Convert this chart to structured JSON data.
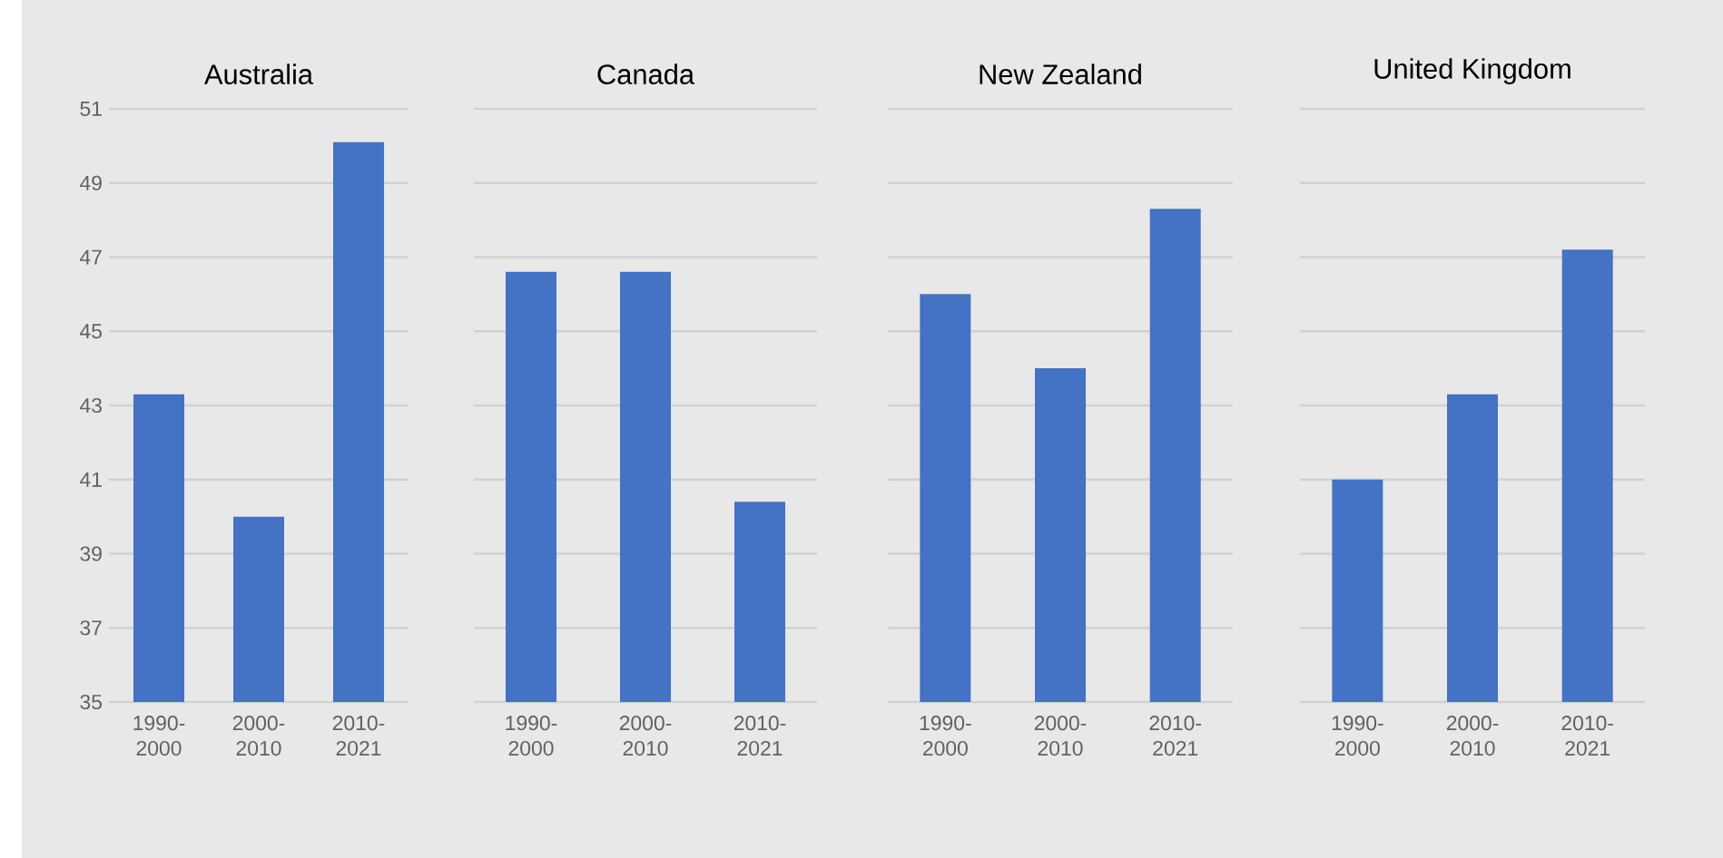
{
  "chart_data": [
    {
      "type": "bar",
      "title": "Australia",
      "categories": [
        "1990-2000",
        "2000-2010",
        "2010-2021"
      ],
      "values": [
        43.3,
        40.0,
        50.1
      ],
      "color": "#4472c4",
      "ylim": [
        35,
        51
      ],
      "yticks": [
        35,
        37,
        39,
        41,
        43,
        45,
        47,
        49,
        51
      ],
      "grid": "y"
    },
    {
      "type": "bar",
      "title": "Canada",
      "categories": [
        "1990-2000",
        "2000-2010",
        "2010-2021"
      ],
      "values": [
        46.6,
        46.6,
        40.4
      ],
      "color": "#4472c4",
      "ylim": [
        35,
        51
      ],
      "yticks": [
        35,
        37,
        39,
        41,
        43,
        45,
        47,
        49,
        51
      ],
      "grid": "y",
      "tick_labels": "x"
    },
    {
      "type": "bar",
      "title": "New Zealand",
      "categories": [
        "1990-2000",
        "2000-2010",
        "2010-2021"
      ],
      "values": [
        46.0,
        44.0,
        48.3
      ],
      "color": "#4472c4",
      "ylim": [
        35,
        51
      ],
      "yticks": [
        35,
        37,
        39,
        41,
        43,
        45,
        47,
        49,
        51
      ],
      "grid": "y",
      "tick_labels": "x"
    },
    {
      "type": "bar",
      "title": "United Kingdom",
      "categories": [
        "1990-2000",
        "2000-2010",
        "2010-2021"
      ],
      "values": [
        41.0,
        43.3,
        47.2
      ],
      "color": "#4472c4",
      "ylim": [
        35,
        51
      ],
      "yticks": [
        35,
        37,
        39,
        41,
        43,
        45,
        47,
        49,
        51
      ],
      "grid": "y",
      "tick_labels": "x"
    }
  ]
}
